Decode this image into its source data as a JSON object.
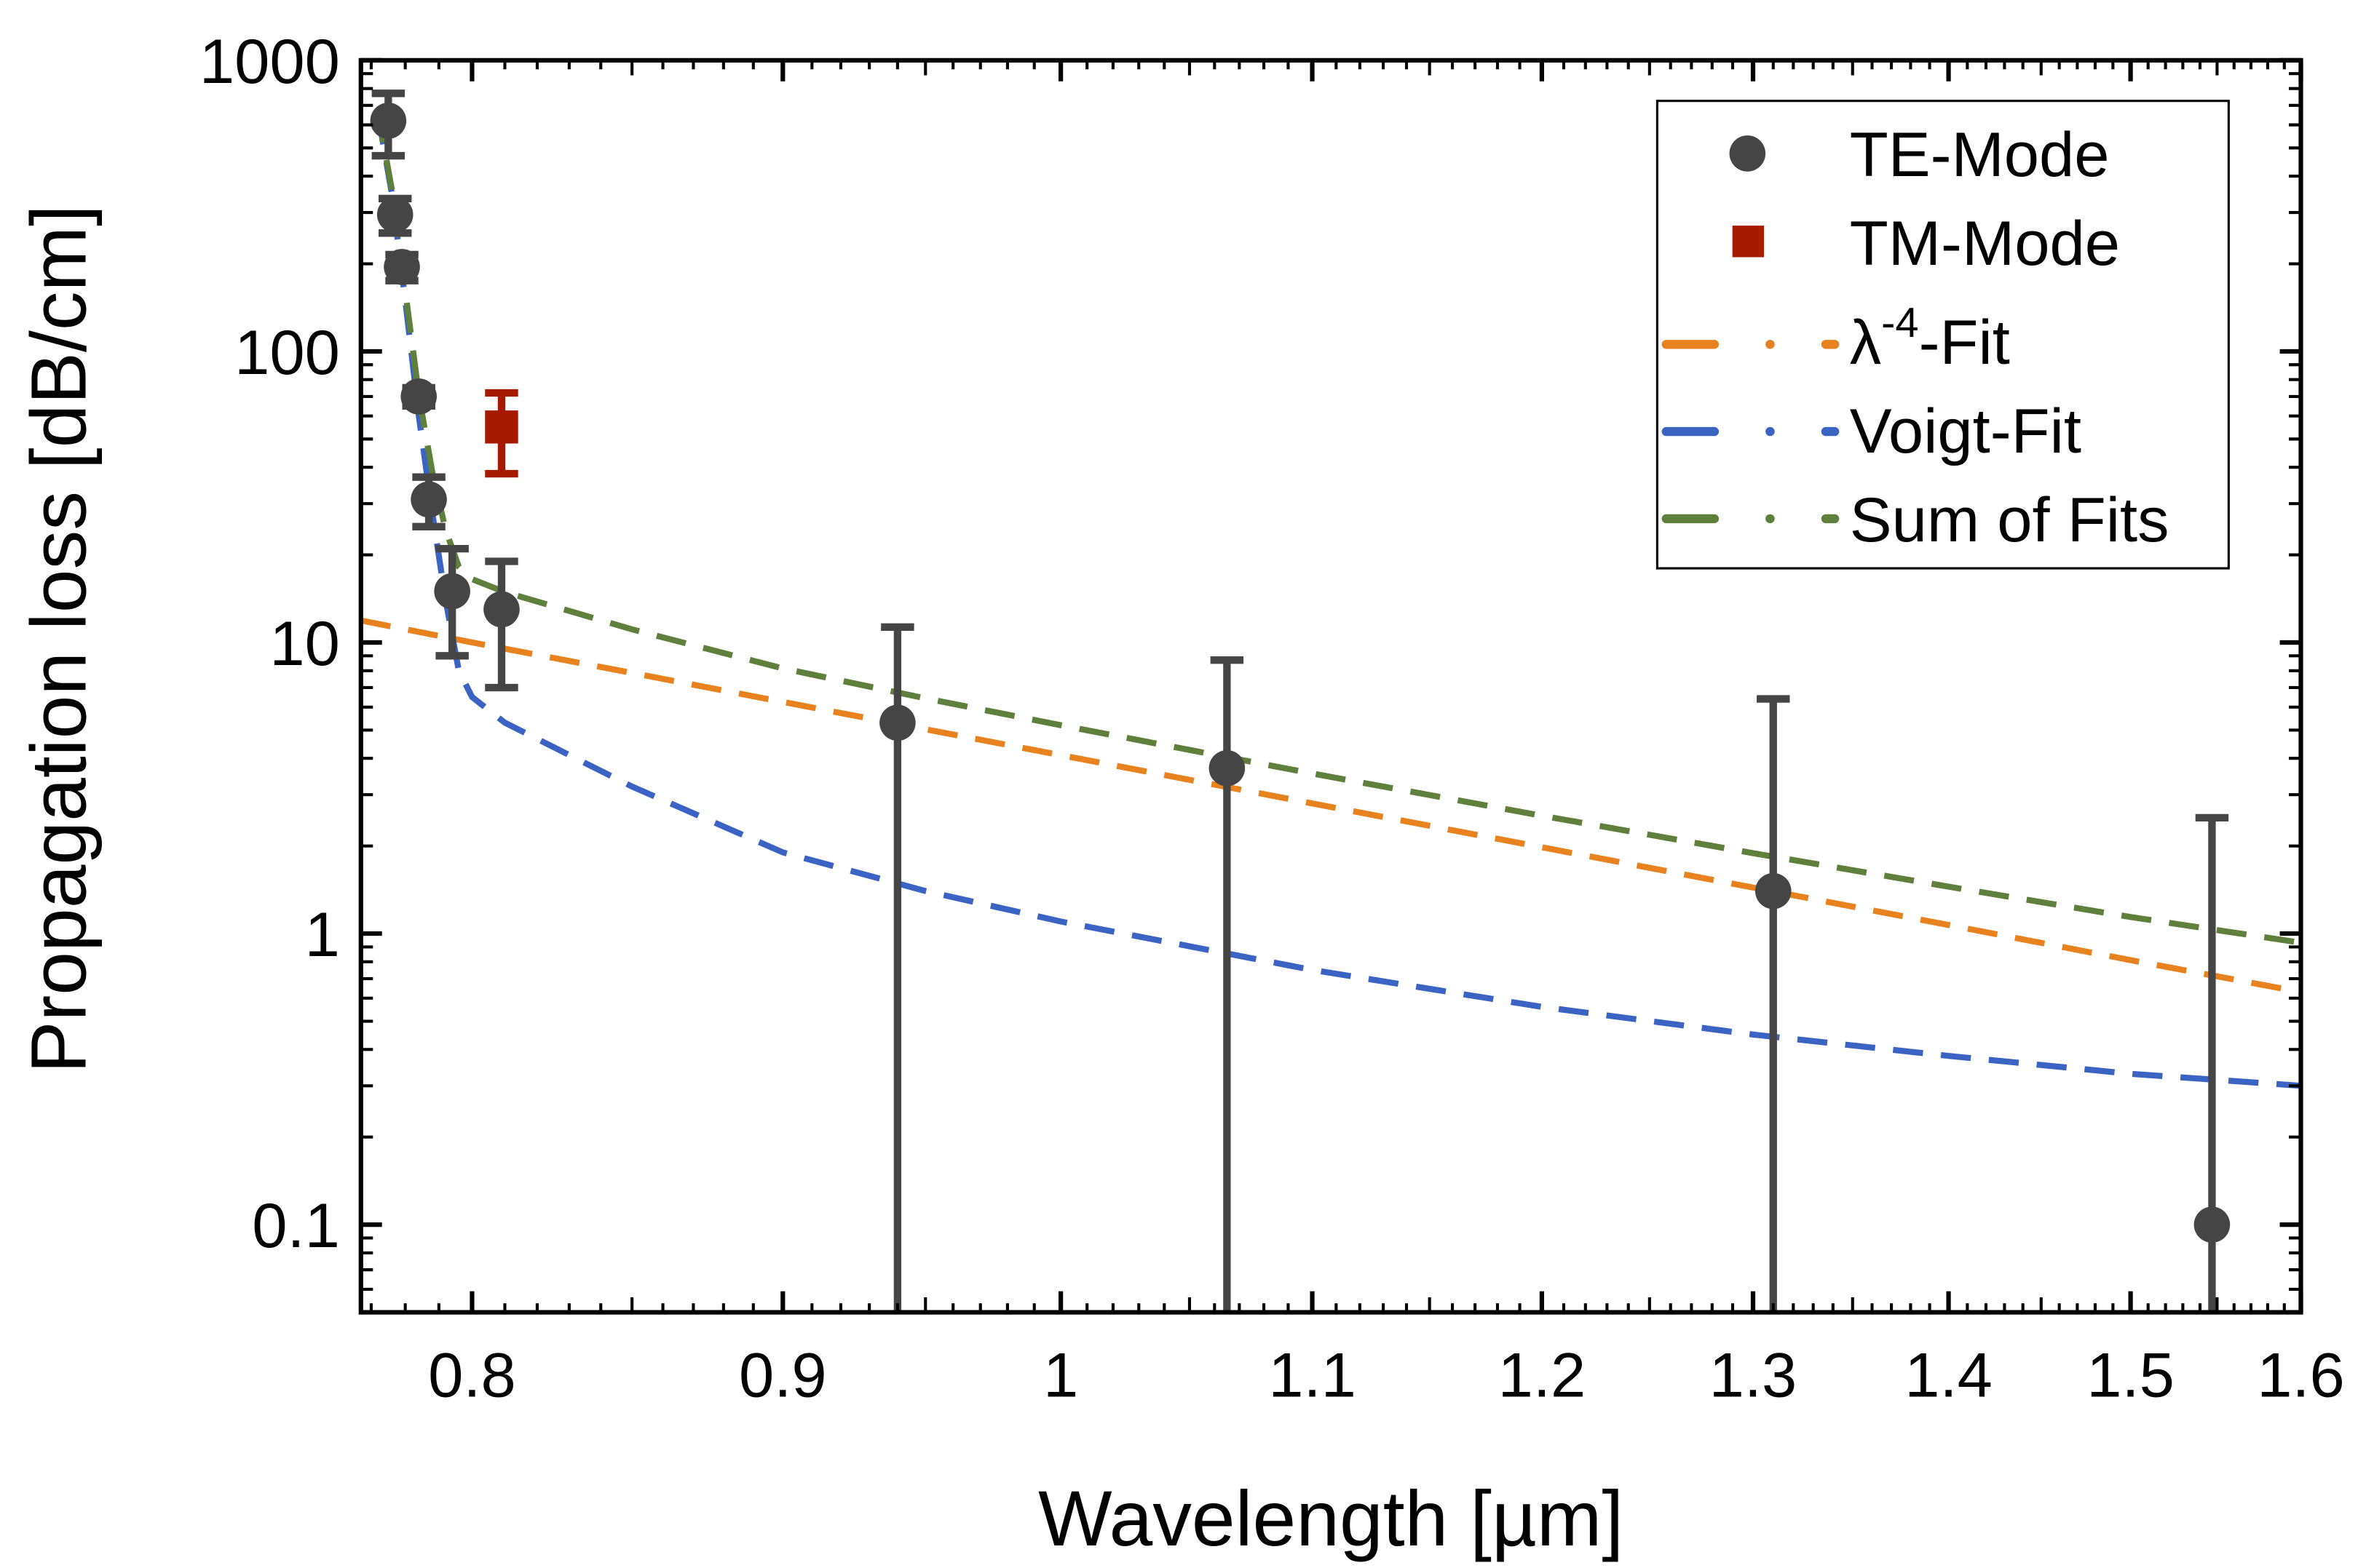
{
  "chart_data": {
    "type": "scatter",
    "xlabel": "Wavelength [µm]",
    "ylabel": "Propagation loss [dB/cm]",
    "xscale": "log",
    "yscale": "log",
    "xlim": [
      0.767,
      1.6
    ],
    "ylim": [
      0.05,
      1000
    ],
    "xticks": [
      0.8,
      0.9,
      1,
      1.1,
      1.2,
      1.3,
      1.4,
      1.5,
      1.6
    ],
    "xtick_labels": [
      "0.8",
      "0.9",
      "1",
      "1.1",
      "1.2",
      "1.3",
      "1.4",
      "1.5",
      "1.6"
    ],
    "yticks": [
      0.1,
      1,
      10,
      100,
      1000
    ],
    "ytick_labels": [
      "0.1",
      "1",
      "10",
      "100",
      "1000"
    ],
    "grid": false,
    "legend_position": "top-right",
    "legend": [
      {
        "label": "TE-Mode",
        "marker": "circle",
        "color": "#454545"
      },
      {
        "label": "TM-Mode",
        "marker": "square",
        "color": "#A61A00"
      },
      {
        "label_main": "λ",
        "label_sup": "-4",
        "label_rest": "-Fit",
        "line": "dash-dot",
        "color": "#E8821E"
      },
      {
        "label": "Voigt-Fit",
        "line": "dash-dot",
        "color": "#3A63C4"
      },
      {
        "label": "Sum of Fits",
        "line": "dash-dot",
        "color": "#5F7F3C"
      }
    ],
    "series": [
      {
        "name": "TE-Mode",
        "color": "#454545",
        "marker": "circle",
        "x": [
          0.775,
          0.777,
          0.779,
          0.784,
          0.787,
          0.794,
          0.809,
          0.94,
          1.065,
          1.31,
          1.547
        ],
        "y": [
          620,
          295,
          195,
          70,
          31,
          15,
          13,
          5.3,
          3.7,
          1.4,
          0.1
        ],
        "yerr": [
          150,
          40,
          20,
          5,
          6,
          6,
          6,
          6,
          5,
          5,
          2.4
        ]
      },
      {
        "name": "TM-Mode",
        "color": "#A61A00",
        "marker": "square",
        "x": [
          0.809
        ],
        "y": [
          55
        ],
        "yerr": [
          17
        ]
      },
      {
        "name": "λ-4-Fit",
        "color": "#E8821E",
        "line": "dashed",
        "x": [
          0.767,
          0.8,
          0.85,
          0.9,
          0.95,
          1.0,
          1.1,
          1.2,
          1.3,
          1.4,
          1.5,
          1.6
        ],
        "y": [
          11.9,
          10.0,
          7.86,
          6.25,
          5.03,
          4.1,
          2.8,
          1.98,
          1.44,
          1.07,
          0.81,
          0.63
        ]
      },
      {
        "name": "Voigt-Fit",
        "color": "#3A63C4",
        "line": "dashed",
        "x": [
          0.772,
          0.776,
          0.78,
          0.784,
          0.788,
          0.792,
          0.796,
          0.8,
          0.81,
          0.85,
          0.9,
          0.95,
          1.0,
          1.1,
          1.2,
          1.3,
          1.4,
          1.5,
          1.6
        ],
        "y": [
          650,
          350,
          150,
          60,
          28,
          14,
          8,
          6.5,
          5.3,
          3.2,
          1.9,
          1.4,
          1.1,
          0.75,
          0.56,
          0.45,
          0.38,
          0.33,
          0.3
        ]
      },
      {
        "name": "Sum of Fits",
        "color": "#5F7F3C",
        "line": "dashed",
        "x": [
          0.772,
          0.776,
          0.78,
          0.784,
          0.788,
          0.792,
          0.796,
          0.8,
          0.81,
          0.85,
          0.9,
          0.95,
          1.0,
          1.1,
          1.2,
          1.3,
          1.4,
          1.5,
          1.6
        ],
        "y": [
          661,
          361,
          161,
          71,
          38.6,
          24.4,
          18.2,
          16.5,
          14.9,
          11.1,
          8.15,
          6.43,
          5.2,
          3.55,
          2.54,
          1.89,
          1.45,
          1.14,
          0.93
        ]
      }
    ]
  }
}
